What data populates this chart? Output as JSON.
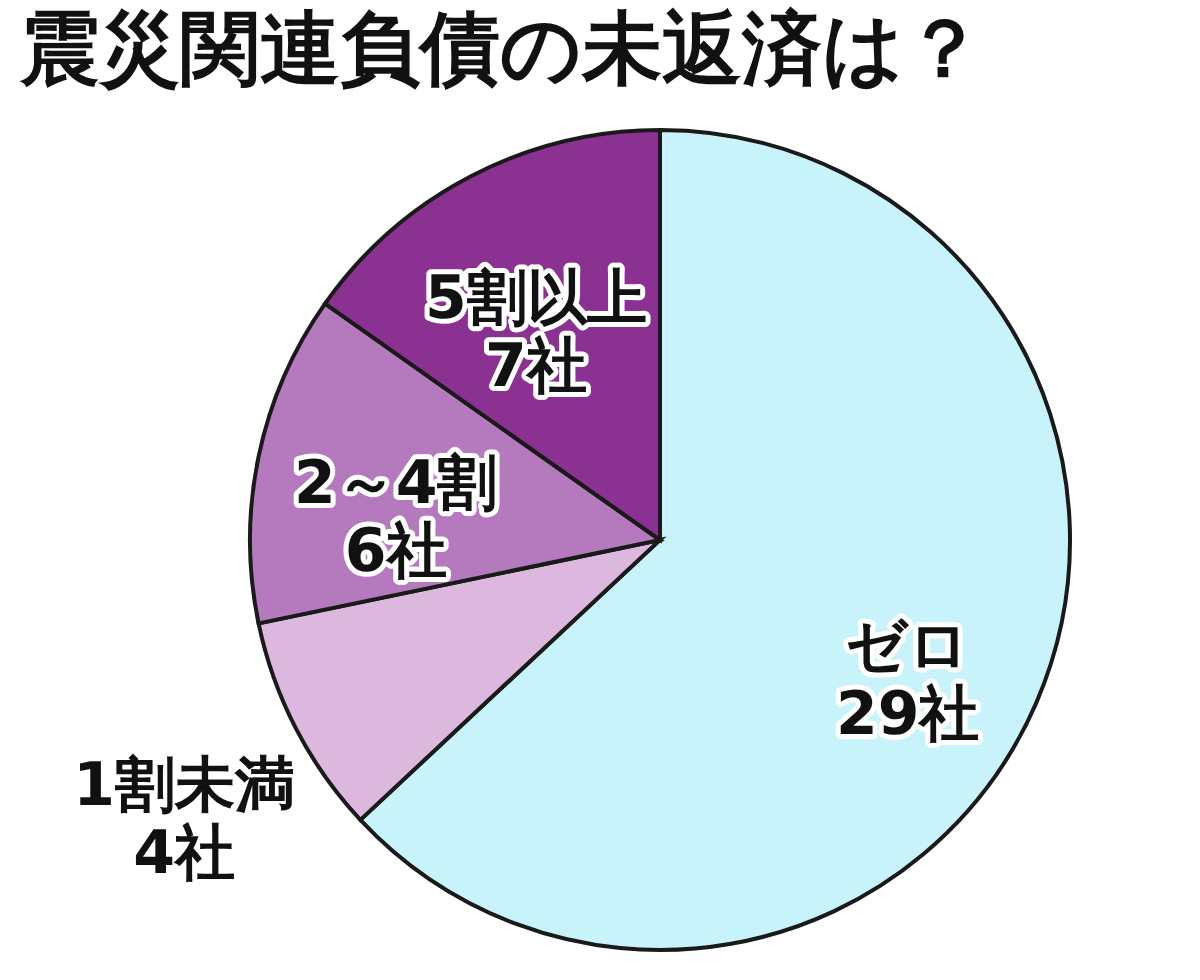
{
  "chart_data": {
    "type": "pie",
    "title": "震災関連負債の未返済は？",
    "categories": [
      "ゼロ",
      "1割未満",
      "2～4割",
      "5割以上"
    ],
    "values": [
      29,
      4,
      6,
      7
    ],
    "colors": [
      "#c8f3fa",
      "#ddb8de",
      "#b47abd",
      "#8b3191"
    ],
    "value_labels": [
      "29社",
      "4社",
      "6社",
      "7社"
    ]
  }
}
